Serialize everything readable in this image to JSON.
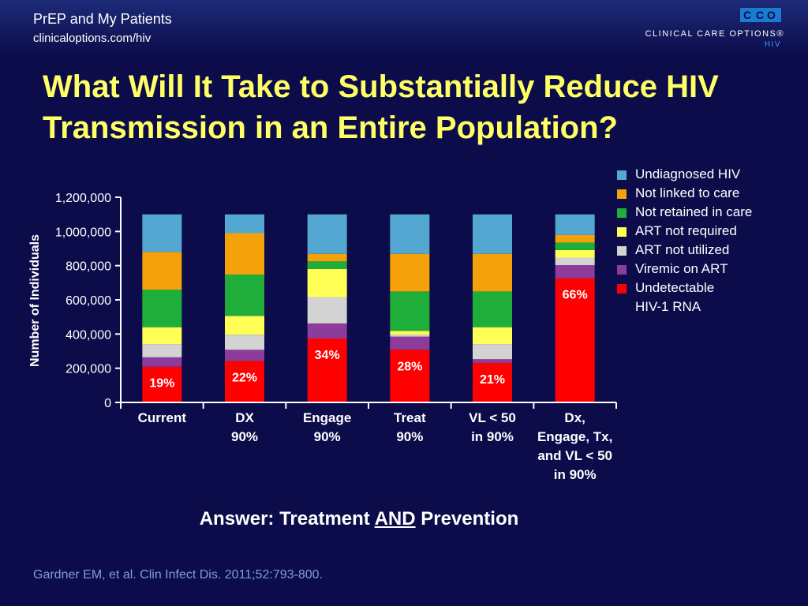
{
  "header": {
    "title": "PrEP and My Patients",
    "subtitle": "clinicaloptions.com/hiv",
    "logo_mark": "CCO",
    "logo_line1": "CLINICAL CARE OPTIONS®",
    "logo_line2": "HIV"
  },
  "slide_title": "What Will It Take to Substantially Reduce HIV Transmission in an Entire Population?",
  "chart_data": {
    "type": "bar",
    "stacked": true,
    "ylabel": "Number of Individuals",
    "ylim": [
      0,
      1200000
    ],
    "yticks": [
      0,
      200000,
      400000,
      600000,
      800000,
      1000000,
      1200000
    ],
    "ytick_labels": [
      "0",
      "200,000",
      "400,000",
      "600,000",
      "800,000",
      "1,000,000",
      "1,200,000"
    ],
    "categories": [
      "Current",
      "DX\n90%",
      "Engage\n90%",
      "Treat\n90%",
      "VL < 50\nin 90%",
      "Dx,\nEngage, Tx,\nand VL < 50\nin 90%"
    ],
    "legend_position": "right",
    "series": [
      {
        "name": "Undetectable\nHIV-1 RNA",
        "color": "#ff0000",
        "values": [
          209000,
          242000,
          374000,
          308000,
          231000,
          726000
        ]
      },
      {
        "name": "Viremic on ART",
        "color": "#8e3c9c",
        "values": [
          55000,
          66000,
          88000,
          77000,
          22000,
          77000
        ]
      },
      {
        "name": "ART not utilized",
        "color": "#d3d3d3",
        "values": [
          77000,
          88000,
          154000,
          11000,
          88000,
          44000
        ]
      },
      {
        "name": "ART not required",
        "color": "#ffff55",
        "values": [
          99000,
          110000,
          165000,
          22000,
          99000,
          44000
        ]
      },
      {
        "name": "Not retained in care",
        "color": "#1fae3a",
        "values": [
          220000,
          242000,
          44000,
          231000,
          209000,
          44000
        ]
      },
      {
        "name": "Not linked to care",
        "color": "#f5a20a",
        "values": [
          220000,
          242000,
          44000,
          220000,
          220000,
          44000
        ]
      },
      {
        "name": "Undiagnosed HIV",
        "color": "#54a7d0",
        "values": [
          220000,
          110000,
          231000,
          231000,
          231000,
          121000
        ]
      }
    ],
    "percent_labels": [
      "19%",
      "22%",
      "34%",
      "28%",
      "21%",
      "66%"
    ],
    "percent_label_values": [
      19,
      22,
      34,
      28,
      21,
      66
    ]
  },
  "answer": {
    "prefix": "Answer: Treatment ",
    "emphasis": "AND",
    "suffix": " Prevention"
  },
  "reference": "Gardner EM, et al. Clin Infect Dis. 2011;52:793-800."
}
